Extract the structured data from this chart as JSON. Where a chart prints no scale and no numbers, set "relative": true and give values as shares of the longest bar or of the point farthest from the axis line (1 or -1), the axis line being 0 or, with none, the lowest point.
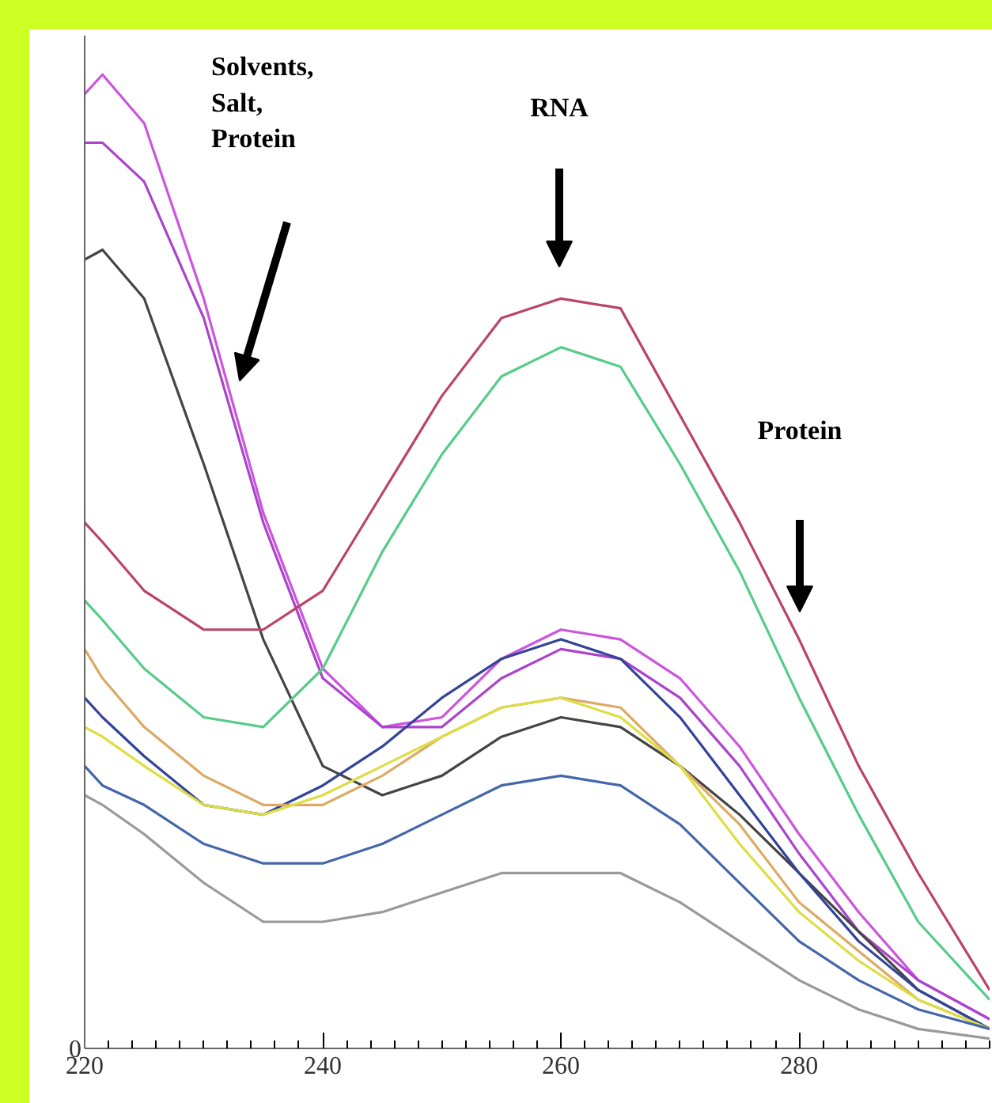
{
  "chart_data": {
    "type": "line",
    "relative": true,
    "x": [
      220,
      221.5,
      225,
      230,
      235,
      240,
      245,
      250,
      255,
      260,
      265,
      270,
      275,
      280,
      285,
      290,
      296
    ],
    "xlim": [
      220,
      296
    ],
    "xticks": [
      220,
      240,
      260,
      280
    ],
    "grid": false,
    "line_style": "solid",
    "series": [
      {
        "color": "#cc55dd",
        "values": [
          0.98,
          1.0,
          0.95,
          0.77,
          0.55,
          0.39,
          0.33,
          0.34,
          0.4,
          0.43,
          0.42,
          0.38,
          0.31,
          0.22,
          0.14,
          0.07,
          0.03
        ]
      },
      {
        "color": "#aa44cc",
        "values": [
          0.93,
          0.93,
          0.89,
          0.75,
          0.54,
          0.38,
          0.33,
          0.33,
          0.38,
          0.41,
          0.4,
          0.36,
          0.29,
          0.2,
          0.12,
          0.07,
          0.03
        ]
      },
      {
        "color": "#444444",
        "values": [
          0.81,
          0.82,
          0.77,
          0.6,
          0.42,
          0.29,
          0.26,
          0.28,
          0.32,
          0.34,
          0.33,
          0.29,
          0.24,
          0.18,
          0.12,
          0.06,
          0.02
        ]
      },
      {
        "color": "#bb4466",
        "values": [
          0.54,
          0.52,
          0.47,
          0.43,
          0.43,
          0.47,
          0.57,
          0.67,
          0.75,
          0.77,
          0.76,
          0.65,
          0.54,
          0.42,
          0.29,
          0.18,
          0.06
        ]
      },
      {
        "color": "#55cc88",
        "values": [
          0.46,
          0.44,
          0.39,
          0.34,
          0.33,
          0.39,
          0.51,
          0.61,
          0.69,
          0.72,
          0.7,
          0.6,
          0.49,
          0.36,
          0.24,
          0.13,
          0.05
        ]
      },
      {
        "color": "#334499",
        "values": [
          0.36,
          0.34,
          0.3,
          0.25,
          0.24,
          0.27,
          0.31,
          0.36,
          0.4,
          0.42,
          0.4,
          0.34,
          0.26,
          0.18,
          0.11,
          0.06,
          0.02
        ]
      },
      {
        "color": "#ddaa66",
        "values": [
          0.41,
          0.38,
          0.33,
          0.28,
          0.25,
          0.25,
          0.28,
          0.32,
          0.35,
          0.36,
          0.35,
          0.29,
          0.23,
          0.15,
          0.1,
          0.05,
          0.02
        ]
      },
      {
        "color": "#dddd44",
        "values": [
          0.33,
          0.32,
          0.29,
          0.25,
          0.24,
          0.26,
          0.29,
          0.32,
          0.35,
          0.36,
          0.34,
          0.29,
          0.21,
          0.14,
          0.09,
          0.05,
          0.02
        ]
      },
      {
        "color": "#4466aa",
        "values": [
          0.29,
          0.27,
          0.25,
          0.21,
          0.19,
          0.19,
          0.21,
          0.24,
          0.27,
          0.28,
          0.27,
          0.23,
          0.17,
          0.11,
          0.07,
          0.04,
          0.02
        ]
      },
      {
        "color": "#999999",
        "values": [
          0.26,
          0.25,
          0.22,
          0.17,
          0.13,
          0.13,
          0.14,
          0.16,
          0.18,
          0.18,
          0.18,
          0.15,
          0.11,
          0.07,
          0.04,
          0.02,
          0.01
        ]
      }
    ],
    "annotations": [
      "Solvents,\nSalt,\nProtein",
      "RNA",
      "Protein",
      "0"
    ]
  }
}
